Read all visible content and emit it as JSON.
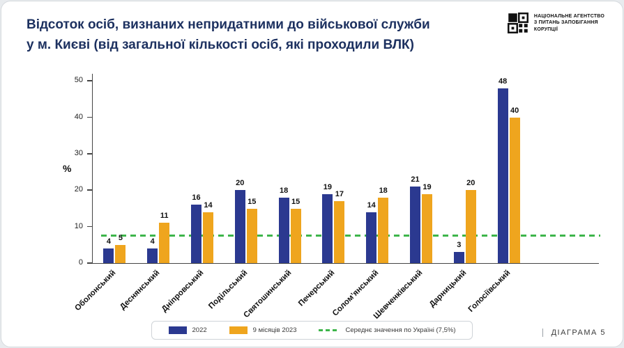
{
  "header": {
    "title_line1": "Відсоток осіб, визнаних непридатними до військової служби",
    "title_line2": "у м. Києві (від загальної кількості осіб, які проходили ВЛК)",
    "logo": {
      "line1": "НАЦІОНАЛЬНЕ АГЕНТСТВО",
      "line2": "З ПИТАНЬ ЗАПОБІГАННЯ",
      "line3": "КОРУПЦІЇ"
    }
  },
  "chart_data": {
    "type": "bar",
    "title": "Відсоток осіб, визнаних непридатними до військової служби у м. Києві (від загальної кількості осіб, які проходили ВЛК)",
    "xlabel": "",
    "ylabel": "%",
    "ylim": [
      0,
      52
    ],
    "yticks": [
      0,
      10,
      20,
      30,
      40,
      50
    ],
    "grid": false,
    "legend_position": "bottom",
    "categories": [
      "Оболонський",
      "Деснянський",
      "Дніпровський",
      "Подільський",
      "Святошинський",
      "Печерський",
      "Соломʼянський",
      "Шевченківський",
      "Дарницький",
      "Голосіївський"
    ],
    "series": [
      {
        "name": "2022",
        "color": "#2b3990",
        "values": [
          4,
          4,
          16,
          20,
          18,
          19,
          14,
          21,
          3,
          48
        ]
      },
      {
        "name": "9 місяців 2023",
        "color": "#efa51e",
        "values": [
          5,
          11,
          14,
          15,
          15,
          17,
          18,
          19,
          20,
          40
        ]
      }
    ],
    "reference_line": {
      "label": "Середнє значення по Україні (7,5%)",
      "value": 7.5,
      "color": "#3db54a"
    }
  },
  "footer": {
    "diagram_label": "ДІАГРАМА 5"
  }
}
